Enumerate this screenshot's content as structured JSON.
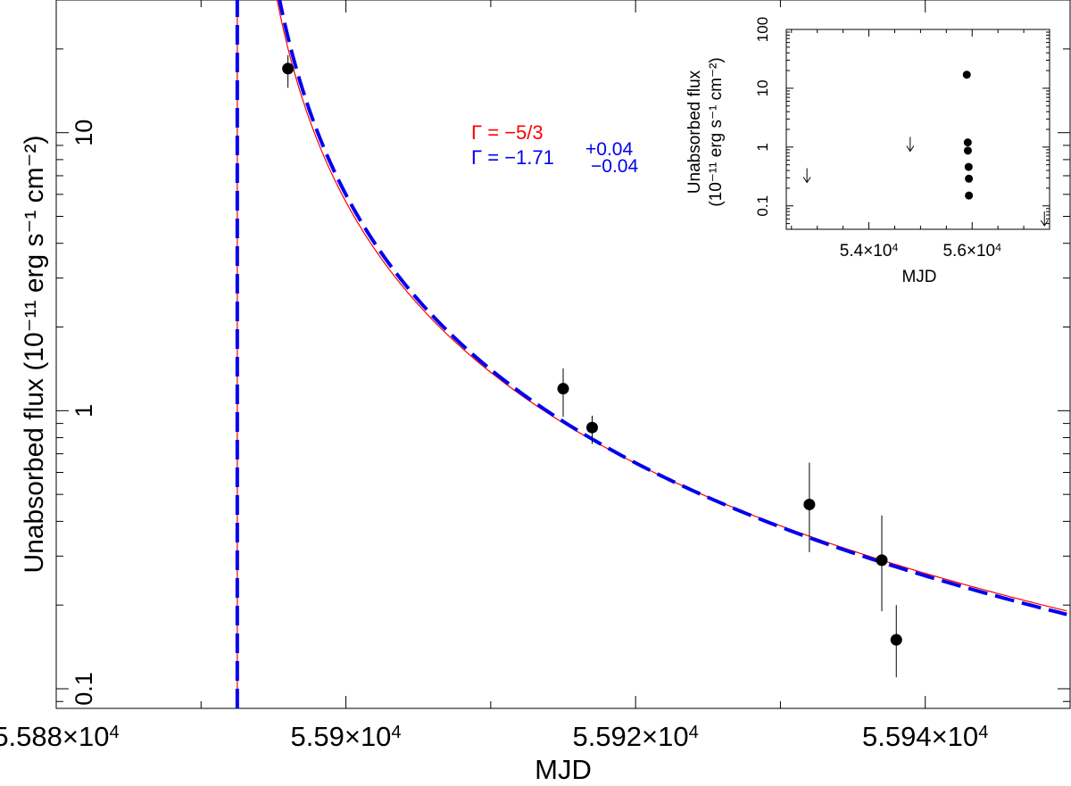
{
  "chart_data": [
    {
      "type": "scatter",
      "title": "",
      "xlabel": "MJD",
      "ylabel": "Unabsorbed flux (10⁻¹¹ erg s⁻¹ cm⁻²)",
      "xscale": "linear",
      "yscale": "log",
      "xlim": [
        55880,
        55950
      ],
      "ylim": [
        0.085,
        30
      ],
      "xticks": [
        55880,
        55890,
        55900,
        55910,
        55920,
        55930,
        55940,
        55950
      ],
      "xtick_labels": [
        {
          "value": 55880,
          "label": "5.588×10⁴"
        },
        {
          "value": 55900,
          "label": "5.59×10⁴"
        },
        {
          "value": 55920,
          "label": "5.592×10⁴"
        },
        {
          "value": 55940,
          "label": "5.594×10⁴"
        }
      ],
      "yticks_major": [
        0.1,
        1,
        10
      ],
      "ytick_labels": [
        "0.1",
        "1",
        "10"
      ],
      "points": [
        {
          "x": 55896.0,
          "y": 17.0,
          "err_low": 14.5,
          "err_high": 19.0
        },
        {
          "x": 55915.0,
          "y": 1.2,
          "err_low": 0.95,
          "err_high": 1.42
        },
        {
          "x": 55917.0,
          "y": 0.87,
          "err_low": 0.76,
          "err_high": 0.96
        },
        {
          "x": 55932.0,
          "y": 0.46,
          "err_low": 0.31,
          "err_high": 0.65
        },
        {
          "x": 55937.0,
          "y": 0.29,
          "err_low": 0.19,
          "err_high": 0.42
        },
        {
          "x": 55938.0,
          "y": 0.15,
          "err_low": 0.11,
          "err_high": 0.2
        }
      ],
      "models": [
        {
          "name": "Γ = −5/3",
          "t0": 55892.5,
          "index": -1.6667,
          "y_at_55937": 0.29,
          "color": "#ff0000",
          "style": "solid"
        },
        {
          "name": "Γ = −1.71",
          "t0": 55892.5,
          "index": -1.71,
          "y_at_55937": 0.285,
          "color": "#0000ee",
          "style": "dashed"
        }
      ],
      "annotations": {
        "red_label": "Γ = −5/3",
        "blue_label": "Γ = −1.71",
        "blue_err_plus": "+0.04",
        "blue_err_minus": "−0.04"
      }
    },
    {
      "type": "scatter",
      "title": "",
      "xlabel": "MJD",
      "ylabel_line1": "Unabsorbed flux",
      "ylabel_line2": "(10⁻¹¹ erg s⁻¹ cm⁻²)",
      "xscale": "linear",
      "yscale": "log",
      "xlim": [
        52400,
        57500
      ],
      "ylim": [
        0.04,
        100
      ],
      "xtick_labels": [
        {
          "value": 54000,
          "label": "5.4×10⁴"
        },
        {
          "value": 56000,
          "label": "5.6×10⁴"
        }
      ],
      "ytick_labels": [
        "0.1",
        "1",
        "10",
        "100"
      ],
      "yticks_major": [
        0.1,
        1,
        10,
        100
      ],
      "points": [
        {
          "x": 55896,
          "y": 17.0
        },
        {
          "x": 55915,
          "y": 1.2
        },
        {
          "x": 55917,
          "y": 0.87
        },
        {
          "x": 55932,
          "y": 0.46
        },
        {
          "x": 55937,
          "y": 0.29
        },
        {
          "x": 55938,
          "y": 0.15
        }
      ],
      "upper_limits": [
        {
          "x": 52800,
          "y": 0.25
        },
        {
          "x": 54800,
          "y": 0.85
        },
        {
          "x": 57400,
          "y": 0.04
        }
      ]
    }
  ]
}
